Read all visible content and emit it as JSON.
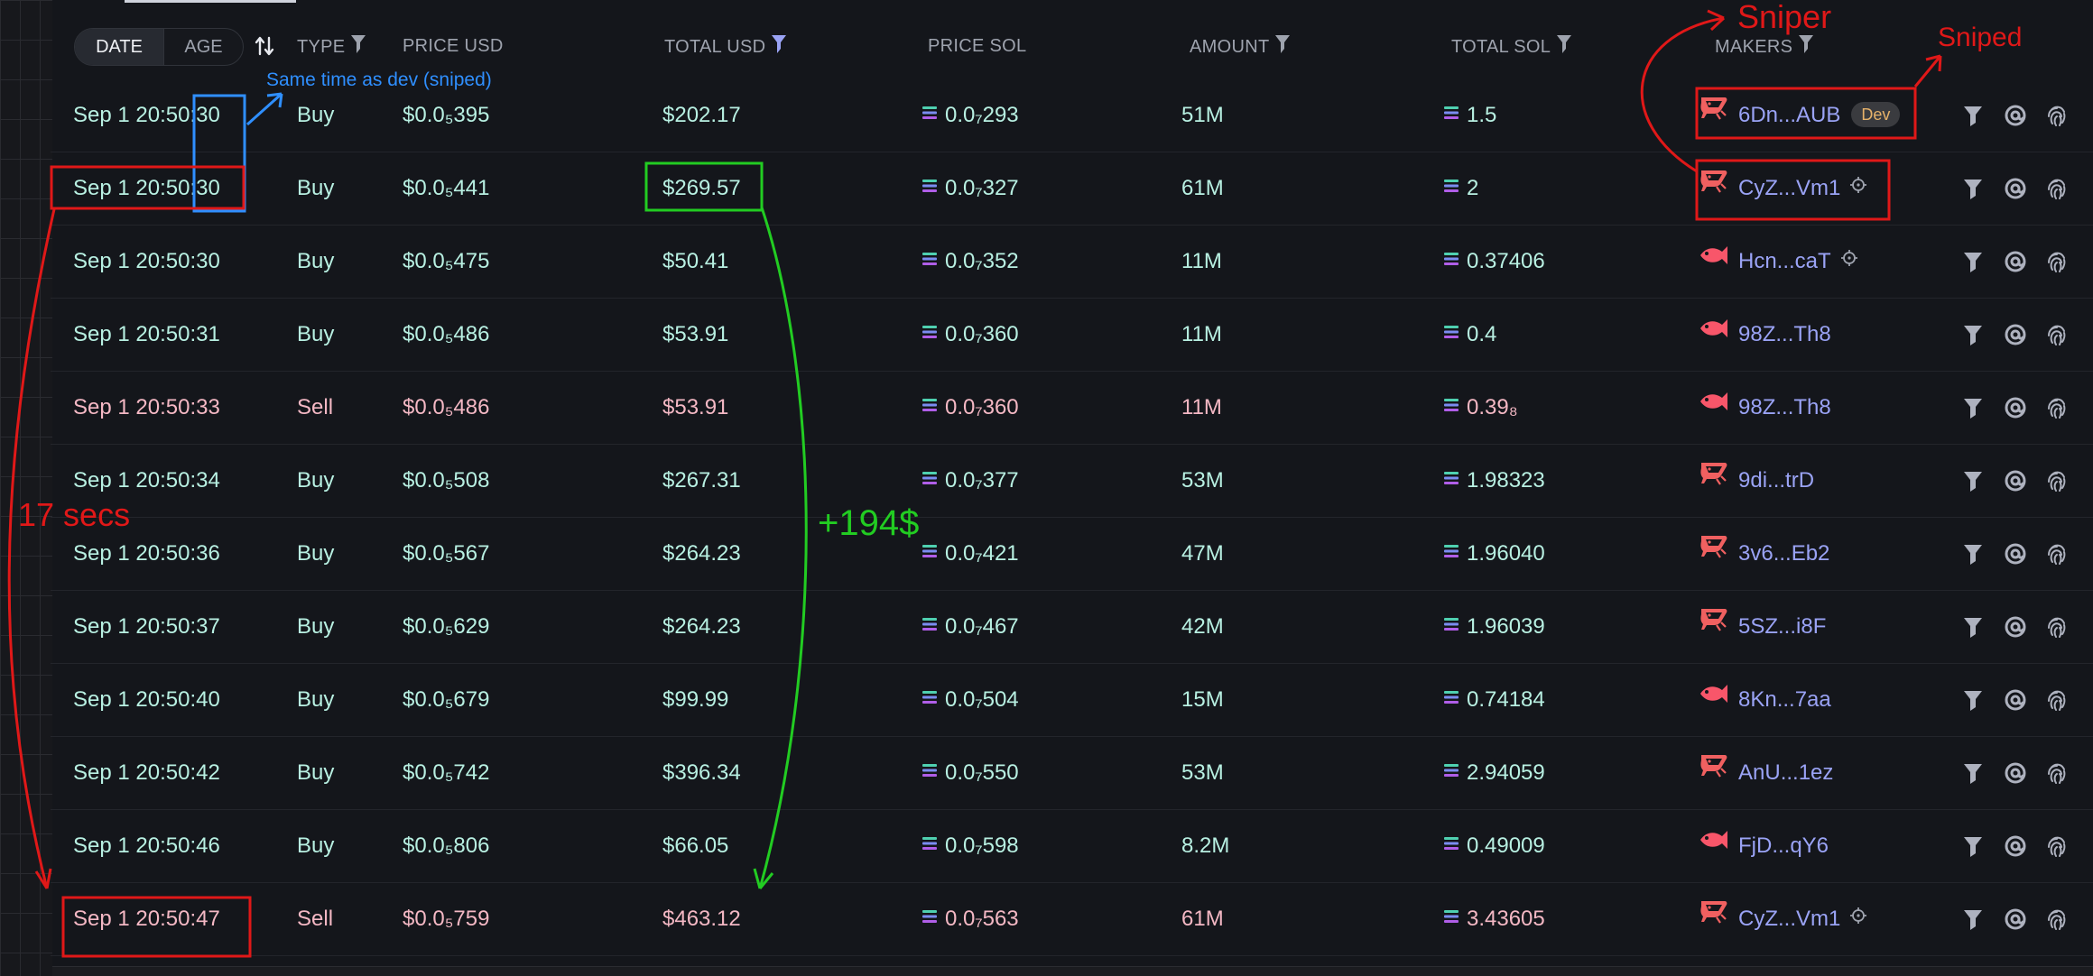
{
  "header": {
    "toggle": {
      "date_label": "DATE",
      "age_label": "AGE",
      "selected": "DATE"
    },
    "columns": {
      "type": "TYPE",
      "price_usd": "PRICE USD",
      "total_usd": "TOTAL USD",
      "price_sol": "PRICE SOL",
      "amount": "AMOUNT",
      "total_sol": "TOTAL SOL",
      "makers": "MAKERS"
    }
  },
  "rows": [
    {
      "date": "Sep 1 20:50:30",
      "type": "Buy",
      "price_usd": "$0.0₅395",
      "total_usd": "$202.17",
      "price_sol": "0.0₇293",
      "amount": "51M",
      "total_sol": "1.5",
      "maker": "6Dn...AUB",
      "maker_icon": "shrimp-icon",
      "badge": "Dev",
      "maker_extra": ""
    },
    {
      "date": "Sep 1 20:50:30",
      "type": "Buy",
      "price_usd": "$0.0₅441",
      "total_usd": "$269.57",
      "price_sol": "0.0₇327",
      "amount": "61M",
      "total_sol": "2",
      "maker": "CyZ...Vm1",
      "maker_icon": "shrimp-icon",
      "badge": "",
      "maker_extra": "crosshair-icon"
    },
    {
      "date": "Sep 1 20:50:30",
      "type": "Buy",
      "price_usd": "$0.0₅475",
      "total_usd": "$50.41",
      "price_sol": "0.0₇352",
      "amount": "11M",
      "total_sol": "0.37406",
      "maker": "Hcn...caT",
      "maker_icon": "fish-icon",
      "badge": "",
      "maker_extra": "crosshair-icon"
    },
    {
      "date": "Sep 1 20:50:31",
      "type": "Buy",
      "price_usd": "$0.0₅486",
      "total_usd": "$53.91",
      "price_sol": "0.0₇360",
      "amount": "11M",
      "total_sol": "0.4",
      "maker": "98Z...Th8",
      "maker_icon": "fish-icon",
      "badge": "",
      "maker_extra": ""
    },
    {
      "date": "Sep 1 20:50:33",
      "type": "Sell",
      "price_usd": "$0.0₅486",
      "total_usd": "$53.91",
      "price_sol": "0.0₇360",
      "amount": "11M",
      "total_sol": "0.39₈",
      "maker": "98Z...Th8",
      "maker_icon": "fish-icon",
      "badge": "",
      "maker_extra": ""
    },
    {
      "date": "Sep 1 20:50:34",
      "type": "Buy",
      "price_usd": "$0.0₅508",
      "total_usd": "$267.31",
      "price_sol": "0.0₇377",
      "amount": "53M",
      "total_sol": "1.98323",
      "maker": "9di...trD",
      "maker_icon": "shrimp-icon",
      "badge": "",
      "maker_extra": ""
    },
    {
      "date": "Sep 1 20:50:36",
      "type": "Buy",
      "price_usd": "$0.0₅567",
      "total_usd": "$264.23",
      "price_sol": "0.0₇421",
      "amount": "47M",
      "total_sol": "1.96040",
      "maker": "3v6...Eb2",
      "maker_icon": "shrimp-icon",
      "badge": "",
      "maker_extra": ""
    },
    {
      "date": "Sep 1 20:50:37",
      "type": "Buy",
      "price_usd": "$0.0₅629",
      "total_usd": "$264.23",
      "price_sol": "0.0₇467",
      "amount": "42M",
      "total_sol": "1.96039",
      "maker": "5SZ...i8F",
      "maker_icon": "shrimp-icon",
      "badge": "",
      "maker_extra": ""
    },
    {
      "date": "Sep 1 20:50:40",
      "type": "Buy",
      "price_usd": "$0.0₅679",
      "total_usd": "$99.99",
      "price_sol": "0.0₇504",
      "amount": "15M",
      "total_sol": "0.74184",
      "maker": "8Kn...7aa",
      "maker_icon": "fish-icon",
      "badge": "",
      "maker_extra": ""
    },
    {
      "date": "Sep 1 20:50:42",
      "type": "Buy",
      "price_usd": "$0.0₅742",
      "total_usd": "$396.34",
      "price_sol": "0.0₇550",
      "amount": "53M",
      "total_sol": "2.94059",
      "maker": "AnU...1ez",
      "maker_icon": "shrimp-icon",
      "badge": "",
      "maker_extra": ""
    },
    {
      "date": "Sep 1 20:50:46",
      "type": "Buy",
      "price_usd": "$0.0₅806",
      "total_usd": "$66.05",
      "price_sol": "0.0₇598",
      "amount": "8.2M",
      "total_sol": "0.49009",
      "maker": "FjD...qY6",
      "maker_icon": "fish-icon",
      "badge": "",
      "maker_extra": ""
    },
    {
      "date": "Sep 1 20:50:47",
      "type": "Sell",
      "price_usd": "$0.0₅759",
      "total_usd": "$463.12",
      "price_sol": "0.0₇563",
      "amount": "61M",
      "total_sol": "3.43605",
      "maker": "CyZ...Vm1",
      "maker_icon": "shrimp-icon",
      "badge": "",
      "maker_extra": "crosshair-icon"
    }
  ],
  "row_actions": [
    "filter-icon",
    "at-sign-icon",
    "fingerprint-icon"
  ],
  "annotations": {
    "blue_note": "Same time as dev (sniped)",
    "profit_note": "+194$",
    "elapsed_note": "17 secs",
    "sniper_note": "Sniper",
    "sniped_note": "Sniped"
  },
  "colors": {
    "background": "#14161b",
    "buy_text": "#b8f0e2",
    "sell_text": "#f4b8c4",
    "maker_text": "#9aa3f5",
    "header_text": "#9ea3ae",
    "annotation_red": "#e01818",
    "annotation_green": "#22cc22",
    "annotation_blue": "#2f8fff"
  }
}
